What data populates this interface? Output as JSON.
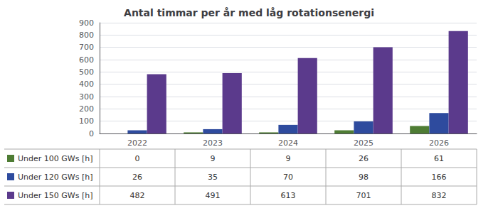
{
  "chart_data": {
    "type": "bar",
    "title": "Antal timmar per år med låg rotationsenergi",
    "categories": [
      "2022",
      "2023",
      "2024",
      "2025",
      "2026"
    ],
    "series": [
      {
        "name": "Under 100 GWs [h]",
        "color": "#4e7c34",
        "values": [
          0,
          9,
          9,
          26,
          61
        ]
      },
      {
        "name": "Under 120 GWs [h]",
        "color": "#2e4b9e",
        "values": [
          26,
          35,
          70,
          98,
          166
        ]
      },
      {
        "name": "Under 150 GWs [h]",
        "color": "#5b3a8c",
        "values": [
          482,
          491,
          613,
          701,
          832
        ]
      }
    ],
    "ylim": [
      0,
      900
    ],
    "yticks": [
      0,
      100,
      200,
      300,
      400,
      500,
      600,
      700,
      800,
      900
    ],
    "grid": true,
    "legend": "bottom"
  }
}
